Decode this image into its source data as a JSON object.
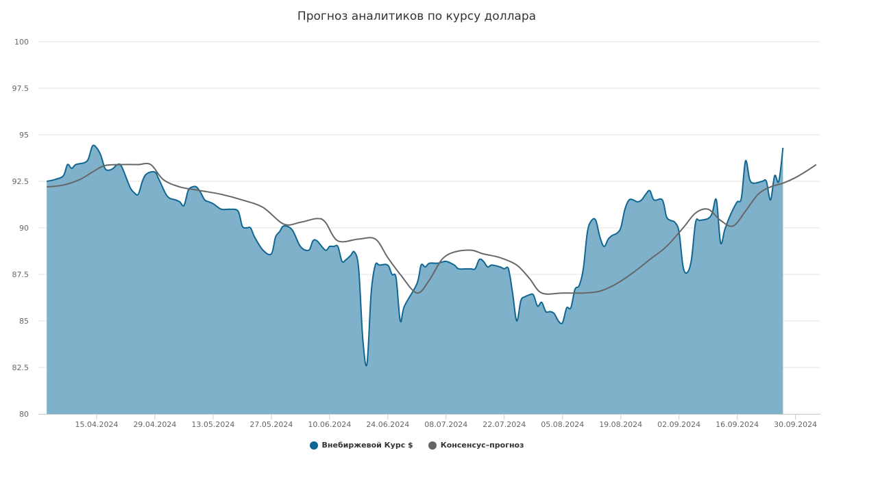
{
  "chart_data": {
    "type": "area",
    "title": "Прогноз аналитиков по курсу доллара",
    "xlabel": "",
    "ylabel": "",
    "ylim": [
      80,
      100
    ],
    "yticks": [
      "80",
      "82.5",
      "85",
      "87.5",
      "90",
      "92.5",
      "95",
      "97.5",
      "100"
    ],
    "xrange": [
      "2024-04-01",
      "2024-10-06"
    ],
    "xticks": [
      "15.04.2024",
      "29.04.2024",
      "13.05.2024",
      "27.05.2024",
      "10.06.2024",
      "24.06.2024",
      "08.07.2024",
      "22.07.2024",
      "05.08.2024",
      "19.08.2024",
      "02.09.2024",
      "16.09.2024",
      "30.09.2024"
    ],
    "grid": true,
    "legend_position": "bottom-center",
    "series": [
      {
        "name": "Внебиржевой Курс $",
        "type": "area",
        "color": "#0f6690",
        "fill": "#7fb1cb",
        "points": [
          [
            "2024-04-03",
            92.5
          ],
          [
            "2024-04-05",
            92.6
          ],
          [
            "2024-04-07",
            92.8
          ],
          [
            "2024-04-08",
            93.4
          ],
          [
            "2024-04-09",
            93.2
          ],
          [
            "2024-04-10",
            93.4
          ],
          [
            "2024-04-12",
            93.5
          ],
          [
            "2024-04-13",
            93.7
          ],
          [
            "2024-04-14",
            94.4
          ],
          [
            "2024-04-15",
            94.3
          ],
          [
            "2024-04-16",
            93.9
          ],
          [
            "2024-04-17",
            93.2
          ],
          [
            "2024-04-18",
            93.1
          ],
          [
            "2024-04-19",
            93.2
          ],
          [
            "2024-04-20",
            93.4
          ],
          [
            "2024-04-21",
            93.3
          ],
          [
            "2024-04-23",
            92.2
          ],
          [
            "2024-04-24",
            91.9
          ],
          [
            "2024-04-25",
            91.8
          ],
          [
            "2024-04-26",
            92.5
          ],
          [
            "2024-04-27",
            92.9
          ],
          [
            "2024-04-29",
            93.0
          ],
          [
            "2024-04-30",
            92.6
          ],
          [
            "2024-05-02",
            91.7
          ],
          [
            "2024-05-04",
            91.5
          ],
          [
            "2024-05-05",
            91.4
          ],
          [
            "2024-05-06",
            91.2
          ],
          [
            "2024-05-07",
            92.0
          ],
          [
            "2024-05-08",
            92.2
          ],
          [
            "2024-05-09",
            92.2
          ],
          [
            "2024-05-10",
            91.9
          ],
          [
            "2024-05-11",
            91.5
          ],
          [
            "2024-05-12",
            91.4
          ],
          [
            "2024-05-13",
            91.3
          ],
          [
            "2024-05-15",
            91.0
          ],
          [
            "2024-05-17",
            91.0
          ],
          [
            "2024-05-19",
            90.9
          ],
          [
            "2024-05-20",
            90.1
          ],
          [
            "2024-05-21",
            90.0
          ],
          [
            "2024-05-22",
            90.0
          ],
          [
            "2024-05-23",
            89.5
          ],
          [
            "2024-05-25",
            88.8
          ],
          [
            "2024-05-27",
            88.6
          ],
          [
            "2024-05-28",
            89.5
          ],
          [
            "2024-05-29",
            89.8
          ],
          [
            "2024-05-30",
            90.1
          ],
          [
            "2024-06-01",
            89.9
          ],
          [
            "2024-06-03",
            89.0
          ],
          [
            "2024-06-05",
            88.8
          ],
          [
            "2024-06-06",
            89.3
          ],
          [
            "2024-06-07",
            89.3
          ],
          [
            "2024-06-09",
            88.8
          ],
          [
            "2024-06-10",
            89.0
          ],
          [
            "2024-06-11",
            89.0
          ],
          [
            "2024-06-12",
            89.0
          ],
          [
            "2024-06-13",
            88.2
          ],
          [
            "2024-06-14",
            88.3
          ],
          [
            "2024-06-15",
            88.5
          ],
          [
            "2024-06-16",
            88.7
          ],
          [
            "2024-06-17",
            87.8
          ],
          [
            "2024-06-18",
            84.0
          ],
          [
            "2024-06-19",
            82.7
          ],
          [
            "2024-06-20",
            86.5
          ],
          [
            "2024-06-21",
            88.0
          ],
          [
            "2024-06-22",
            88.0
          ],
          [
            "2024-06-24",
            88.0
          ],
          [
            "2024-06-25",
            87.5
          ],
          [
            "2024-06-26",
            87.3
          ],
          [
            "2024-06-27",
            85.0
          ],
          [
            "2024-06-28",
            85.8
          ],
          [
            "2024-07-01",
            87.0
          ],
          [
            "2024-07-02",
            88.0
          ],
          [
            "2024-07-03",
            87.9
          ],
          [
            "2024-07-04",
            88.1
          ],
          [
            "2024-07-06",
            88.1
          ],
          [
            "2024-07-08",
            88.2
          ],
          [
            "2024-07-10",
            88.0
          ],
          [
            "2024-07-11",
            87.8
          ],
          [
            "2024-07-13",
            87.8
          ],
          [
            "2024-07-14",
            87.8
          ],
          [
            "2024-07-15",
            87.8
          ],
          [
            "2024-07-16",
            88.3
          ],
          [
            "2024-07-17",
            88.2
          ],
          [
            "2024-07-18",
            87.9
          ],
          [
            "2024-07-19",
            88.0
          ],
          [
            "2024-07-21",
            87.9
          ],
          [
            "2024-07-22",
            87.8
          ],
          [
            "2024-07-23",
            87.8
          ],
          [
            "2024-07-24",
            86.5
          ],
          [
            "2024-07-25",
            85.0
          ],
          [
            "2024-07-26",
            86.1
          ],
          [
            "2024-07-27",
            86.3
          ],
          [
            "2024-07-28",
            86.4
          ],
          [
            "2024-07-29",
            86.4
          ],
          [
            "2024-07-30",
            85.8
          ],
          [
            "2024-07-31",
            86.0
          ],
          [
            "2024-08-01",
            85.5
          ],
          [
            "2024-08-02",
            85.5
          ],
          [
            "2024-08-03",
            85.4
          ],
          [
            "2024-08-04",
            85.0
          ],
          [
            "2024-08-05",
            84.9
          ],
          [
            "2024-08-06",
            85.7
          ],
          [
            "2024-08-07",
            85.7
          ],
          [
            "2024-08-08",
            86.7
          ],
          [
            "2024-08-09",
            86.9
          ],
          [
            "2024-08-10",
            87.8
          ],
          [
            "2024-08-11",
            89.8
          ],
          [
            "2024-08-12",
            90.4
          ],
          [
            "2024-08-13",
            90.4
          ],
          [
            "2024-08-14",
            89.5
          ],
          [
            "2024-08-15",
            89.0
          ],
          [
            "2024-08-16",
            89.4
          ],
          [
            "2024-08-17",
            89.6
          ],
          [
            "2024-08-18",
            89.7
          ],
          [
            "2024-08-19",
            90.0
          ],
          [
            "2024-08-20",
            91.0
          ],
          [
            "2024-08-21",
            91.5
          ],
          [
            "2024-08-22",
            91.5
          ],
          [
            "2024-08-23",
            91.4
          ],
          [
            "2024-08-24",
            91.5
          ],
          [
            "2024-08-25",
            91.8
          ],
          [
            "2024-08-26",
            92.0
          ],
          [
            "2024-08-27",
            91.5
          ],
          [
            "2024-08-29",
            91.5
          ],
          [
            "2024-08-30",
            90.6
          ],
          [
            "2024-08-31",
            90.4
          ],
          [
            "2024-09-01",
            90.3
          ],
          [
            "2024-09-02",
            89.8
          ],
          [
            "2024-09-03",
            87.9
          ],
          [
            "2024-09-04",
            87.6
          ],
          [
            "2024-09-05",
            88.3
          ],
          [
            "2024-09-06",
            90.3
          ],
          [
            "2024-09-07",
            90.4
          ],
          [
            "2024-09-09",
            90.5
          ],
          [
            "2024-09-10",
            90.8
          ],
          [
            "2024-09-11",
            91.5
          ],
          [
            "2024-09-12",
            89.2
          ],
          [
            "2024-09-13",
            89.9
          ],
          [
            "2024-09-14",
            90.5
          ],
          [
            "2024-09-15",
            91.0
          ],
          [
            "2024-09-16",
            91.4
          ],
          [
            "2024-09-17",
            91.6
          ],
          [
            "2024-09-18",
            93.6
          ],
          [
            "2024-09-19",
            92.6
          ],
          [
            "2024-09-20",
            92.4
          ],
          [
            "2024-09-22",
            92.5
          ],
          [
            "2024-09-23",
            92.5
          ],
          [
            "2024-09-24",
            91.5
          ],
          [
            "2024-09-25",
            92.8
          ],
          [
            "2024-09-26",
            92.5
          ],
          [
            "2024-09-27",
            94.3
          ]
        ]
      },
      {
        "name": "Консенсус–прогноз",
        "type": "line",
        "color": "#666666",
        "points": [
          [
            "2024-04-03",
            92.2
          ],
          [
            "2024-04-07",
            92.3
          ],
          [
            "2024-04-11",
            92.6
          ],
          [
            "2024-04-14",
            93.0
          ],
          [
            "2024-04-17",
            93.35
          ],
          [
            "2024-04-21",
            93.4
          ],
          [
            "2024-04-25",
            93.4
          ],
          [
            "2024-04-28",
            93.4
          ],
          [
            "2024-05-01",
            92.6
          ],
          [
            "2024-05-05",
            92.2
          ],
          [
            "2024-05-10",
            92.0
          ],
          [
            "2024-05-15",
            91.8
          ],
          [
            "2024-05-20",
            91.5
          ],
          [
            "2024-05-25",
            91.1
          ],
          [
            "2024-05-30",
            90.2
          ],
          [
            "2024-06-03",
            90.3
          ],
          [
            "2024-06-07",
            90.5
          ],
          [
            "2024-06-09",
            90.3
          ],
          [
            "2024-06-12",
            89.3
          ],
          [
            "2024-06-17",
            89.4
          ],
          [
            "2024-06-21",
            89.4
          ],
          [
            "2024-06-24",
            88.4
          ],
          [
            "2024-06-27",
            87.5
          ],
          [
            "2024-07-01",
            86.5
          ],
          [
            "2024-07-04",
            87.2
          ],
          [
            "2024-07-07",
            88.3
          ],
          [
            "2024-07-10",
            88.7
          ],
          [
            "2024-07-14",
            88.8
          ],
          [
            "2024-07-17",
            88.6
          ],
          [
            "2024-07-21",
            88.4
          ],
          [
            "2024-07-25",
            88.0
          ],
          [
            "2024-07-28",
            87.3
          ],
          [
            "2024-07-31",
            86.5
          ],
          [
            "2024-08-05",
            86.5
          ],
          [
            "2024-08-10",
            86.5
          ],
          [
            "2024-08-14",
            86.6
          ],
          [
            "2024-08-18",
            87.0
          ],
          [
            "2024-08-22",
            87.6
          ],
          [
            "2024-08-26",
            88.3
          ],
          [
            "2024-08-30",
            89.0
          ],
          [
            "2024-09-03",
            90.0
          ],
          [
            "2024-09-06",
            90.8
          ],
          [
            "2024-09-09",
            91.0
          ],
          [
            "2024-09-12",
            90.4
          ],
          [
            "2024-09-15",
            90.1
          ],
          [
            "2024-09-18",
            90.9
          ],
          [
            "2024-09-21",
            91.8
          ],
          [
            "2024-09-24",
            92.2
          ],
          [
            "2024-09-27",
            92.4
          ],
          [
            "2024-09-30",
            92.7
          ],
          [
            "2024-10-03",
            93.1
          ],
          [
            "2024-10-05",
            93.4
          ]
        ]
      }
    ]
  }
}
